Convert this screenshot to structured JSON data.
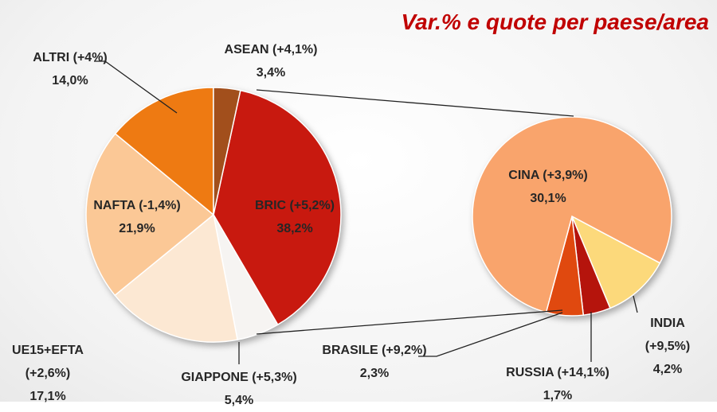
{
  "chart_data": {
    "type": "pie-of-pie",
    "title": "Var.% e quote per paese/area",
    "categories": [
      "BRIC (+5,2%)",
      "GIAPPONE (+5,3%)",
      "UE15+EFTA (+2,6%)",
      "NAFTA (-1,4%)",
      "ALTRI (+4%)",
      "ASEAN (+4,1%)"
    ],
    "values": [
      38.2,
      5.4,
      17.1,
      21.9,
      14.0,
      3.4
    ],
    "value_labels": [
      "38,2%",
      "5,4%",
      "17,1%",
      "21,9%",
      "14,0%",
      "3,4%"
    ],
    "colors": [
      "#c8190f",
      "#f6f4f2",
      "#fce8d3",
      "#fbc896",
      "#ee7a12",
      "#a24f1c"
    ],
    "sub_categories": [
      "INDIA (+9,5%)",
      "RUSSIA (+14,1%)",
      "BRASILE (+9,2%)",
      "CINA (+3,9%)"
    ],
    "sub_values": [
      4.2,
      1.7,
      2.3,
      30.1
    ],
    "sub_value_labels": [
      "4,2%",
      "1,7%",
      "2,3%",
      "30,1%"
    ],
    "sub_colors": [
      "#fcd97b",
      "#b5140c",
      "#e0490f",
      "#f9a46c"
    ]
  }
}
